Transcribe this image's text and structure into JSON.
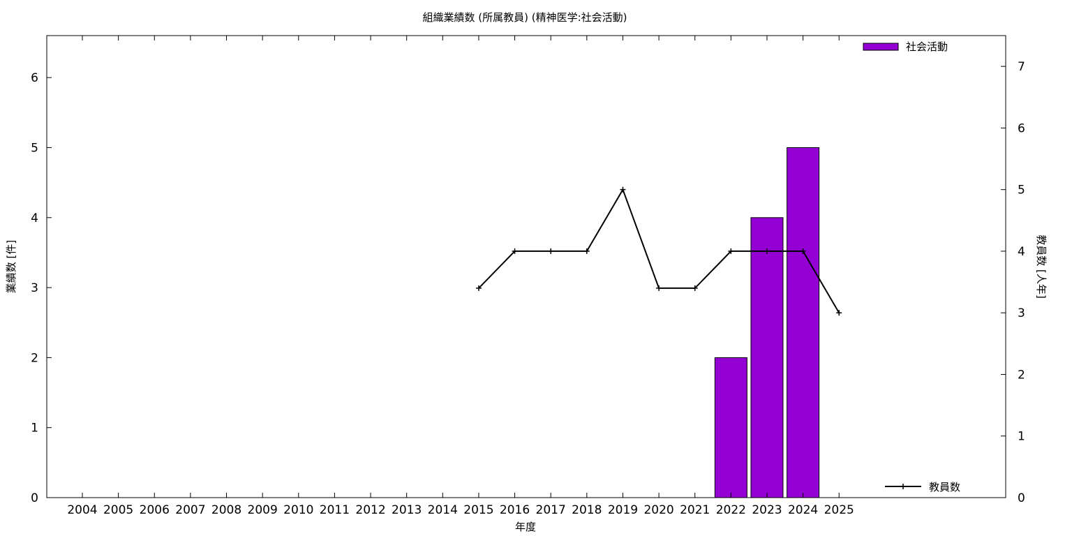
{
  "chart_data": {
    "type": "bar",
    "title": "組織業績数 (所属教員) (精神医学:社会活動)",
    "xlabel": "年度",
    "ylabel": "業績数 [件]",
    "y2label": "教員数 [人年]",
    "categories": [
      "2004",
      "2005",
      "2006",
      "2007",
      "2008",
      "2009",
      "2010",
      "2011",
      "2012",
      "2013",
      "2014",
      "2015",
      "2016",
      "2017",
      "2018",
      "2019",
      "2020",
      "2021",
      "2022",
      "2023",
      "2024",
      "2025"
    ],
    "ylim": [
      0,
      6.6
    ],
    "y2lim": [
      0,
      7.5
    ],
    "yticks": [
      "0",
      "1",
      "2",
      "3",
      "4",
      "5",
      "6"
    ],
    "y2ticks": [
      "0",
      "1",
      "2",
      "3",
      "4",
      "5",
      "6",
      "7"
    ],
    "grid": false,
    "series": [
      {
        "name": "社会活動",
        "type": "bar",
        "axis": "left",
        "color": "#9400d3",
        "values": [
          null,
          null,
          null,
          null,
          null,
          null,
          null,
          null,
          null,
          null,
          null,
          null,
          null,
          null,
          null,
          null,
          null,
          null,
          2,
          4,
          5,
          null
        ]
      },
      {
        "name": "教員数",
        "type": "line",
        "axis": "right",
        "color": "#000000",
        "values": [
          null,
          null,
          null,
          null,
          null,
          null,
          null,
          null,
          null,
          null,
          null,
          3.4,
          4,
          4,
          4,
          5,
          3.4,
          3.4,
          4,
          4,
          4,
          3
        ]
      }
    ],
    "legend": {
      "bars": "top-right",
      "line": "bottom-right"
    }
  }
}
